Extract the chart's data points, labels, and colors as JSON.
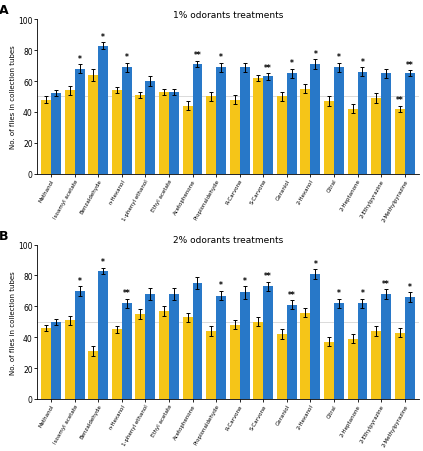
{
  "panel_A": {
    "title": "1% odorants treatments",
    "categories": [
      "Methanol",
      "Isoamyl acetate",
      "Benzaldehyde",
      "n-Hexanol",
      "1-phenyl ethanol",
      "Ethyl acetate",
      "Acetophenone",
      "Propionaldehyde",
      "R-Carvone",
      "S-Carvone",
      "Geraniol",
      "2-Hexanol",
      "Citral",
      "2-Heptanone",
      "2-Ethylpyrazine",
      "2-Methylpyrazine"
    ],
    "blue_vals": [
      52,
      68,
      83,
      69,
      60,
      53,
      71,
      69,
      69,
      63,
      65,
      71,
      69,
      66,
      65,
      65
    ],
    "yellow_vals": [
      48,
      54,
      64,
      54,
      51,
      53,
      44,
      50,
      48,
      62,
      50,
      55,
      47,
      42,
      49,
      42
    ],
    "blue_err": [
      2,
      3,
      2,
      3,
      3,
      2,
      2,
      3,
      3,
      2,
      3,
      3,
      3,
      3,
      3,
      2
    ],
    "yellow_err": [
      2,
      3,
      4,
      2,
      2,
      2,
      3,
      3,
      3,
      2,
      3,
      3,
      3,
      3,
      3,
      2
    ],
    "significance_blue": [
      "",
      "*",
      "*",
      "*",
      "",
      "",
      "**",
      "*",
      "",
      "**",
      "*",
      "*",
      "*",
      "*",
      "",
      "**"
    ],
    "significance_yellow": [
      "",
      "",
      "",
      "",
      "",
      "",
      "",
      "",
      "",
      "",
      "",
      "",
      "",
      "",
      "",
      "**"
    ]
  },
  "panel_B": {
    "title": "2% odorants treatments",
    "categories": [
      "Methanol",
      "Isoamyl acetate",
      "Benzaldehyde",
      "n-Hexanol",
      "1-phenyl ethanol",
      "Ethyl acetate",
      "Acetophenone",
      "Propionaldehyde",
      "R-Carvone",
      "S-Carvone",
      "Geraniol",
      "2-Hexanol",
      "Citral",
      "2-Heptanone",
      "2-Ethylpyrazine",
      "2-Methylpyrazine"
    ],
    "blue_vals": [
      50,
      70,
      83,
      62,
      68,
      68,
      75,
      67,
      69,
      73,
      61,
      81,
      62,
      62,
      68,
      66
    ],
    "yellow_vals": [
      46,
      51,
      31,
      45,
      55,
      57,
      53,
      44,
      48,
      50,
      42,
      56,
      37,
      39,
      44,
      43
    ],
    "blue_err": [
      2,
      3,
      2,
      3,
      4,
      4,
      4,
      3,
      4,
      3,
      3,
      3,
      3,
      3,
      3,
      3
    ],
    "yellow_err": [
      2,
      3,
      3,
      2,
      3,
      3,
      3,
      3,
      3,
      3,
      3,
      3,
      3,
      3,
      3,
      3
    ],
    "significance_blue": [
      "",
      "*",
      "*",
      "**",
      "",
      "",
      "",
      "*",
      "*",
      "**",
      "**",
      "*",
      "*",
      "*",
      "**",
      "*"
    ],
    "significance_yellow": [
      "",
      "",
      "",
      "",
      "",
      "",
      "",
      "",
      "",
      "",
      "",
      "",
      "",
      "",
      "",
      ""
    ]
  },
  "blue_color": "#2878C8",
  "yellow_color": "#F5C518",
  "bar_width": 0.42,
  "ylim": [
    0,
    100
  ],
  "yticks": [
    0,
    20,
    40,
    60,
    80,
    100
  ],
  "ylabel": "No. of flies in collection tubes",
  "figsize": [
    4.23,
    4.52
  ],
  "dpi": 100,
  "background_color": "#ffffff",
  "ref_line": 50
}
